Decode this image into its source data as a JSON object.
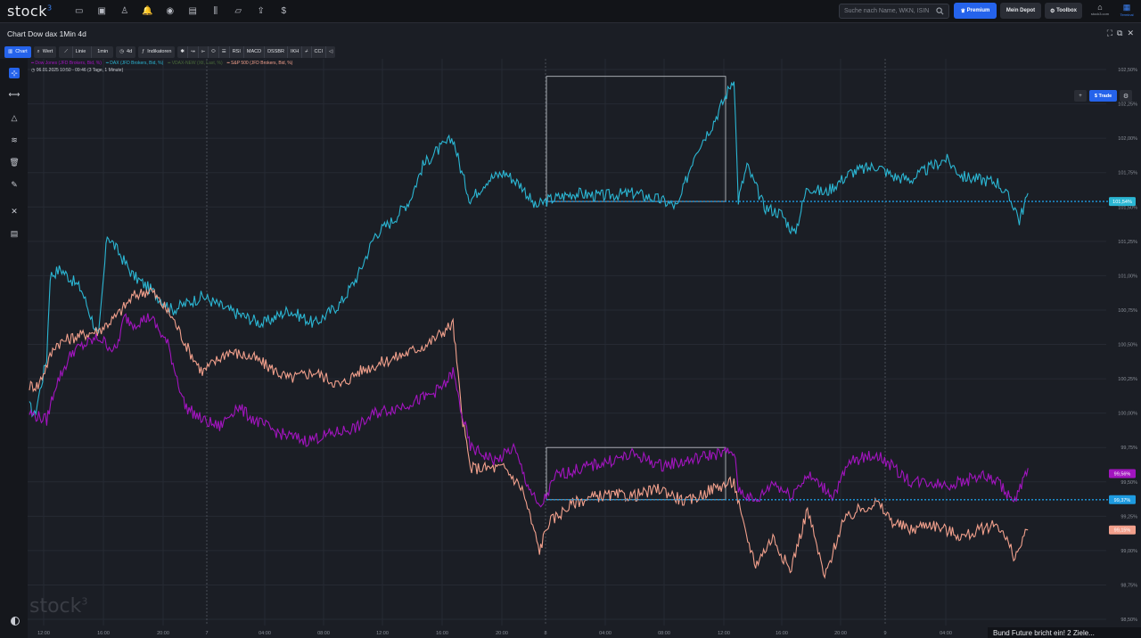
{
  "app": {
    "logo": "stock",
    "logo_sup": "3"
  },
  "nav_icons": [
    "dashboard-icon",
    "monitor-icon",
    "user-icon",
    "bell-icon",
    "eye-icon",
    "news-icon",
    "candles-icon",
    "folder-icon",
    "upload-icon",
    "dollar-icon"
  ],
  "search": {
    "placeholder": "Suche nach Name, WKN, ISIN"
  },
  "header": {
    "premium": "Premium",
    "depot": "Mein Depot",
    "toolbox": "Toolbox",
    "app1": "stock3.com",
    "app2": "Terminal"
  },
  "window": {
    "title": "Chart Dow dax 1Min 4d"
  },
  "toolbar": {
    "chart": "Chart",
    "wert": "Wert",
    "linie": "Linie",
    "interval": "1min",
    "range": "4d",
    "indikatoren": "Indikatoren",
    "indicators": [
      "RSI",
      "MACD",
      "DSSBR",
      "IKH"
    ],
    "cci": "CCI",
    "trade": "Trade"
  },
  "legend": {
    "series": [
      {
        "name": "Dow Jones (JFD Brokers, Bid, %)",
        "color": "#a214bf"
      },
      {
        "name": "DAX (JFD Brokers, Bid, %)",
        "color": "#2bb6d3"
      },
      {
        "name": "VDAX-NEW (Xtl, Last, %)",
        "color": "#4a6b3a"
      },
      {
        "name": "S&P 500 (JFD Brokers, Bid, %)",
        "color": "#f2a08c"
      }
    ],
    "range_text": "06.01.2025 10:50 - 09:46  (3 Tage, 1 Minute)"
  },
  "chart_data": {
    "type": "line",
    "y_ticks": [
      "102,50%",
      "102,25%",
      "102,00%",
      "101,75%",
      "101,50%",
      "101,25%",
      "101,00%",
      "100,75%",
      "100,50%",
      "100,25%",
      "100,00%",
      "99,75%",
      "99,50%",
      "99,25%",
      "99,00%",
      "98,75%",
      "98,50%"
    ],
    "y_tick_values": [
      102.5,
      102.25,
      102.0,
      101.75,
      101.5,
      101.25,
      101.0,
      100.75,
      100.5,
      100.25,
      100.0,
      99.75,
      99.5,
      99.25,
      99.0,
      98.75,
      98.5
    ],
    "x_ticks": [
      "12:00",
      "16:00",
      "20:00",
      "7",
      "04:00",
      "08:00",
      "12:00",
      "16:00",
      "20:00",
      "8",
      "04:00",
      "08:00",
      "12:00",
      "16:00",
      "20:00",
      "9",
      "04:00"
    ],
    "price_labels": [
      {
        "text": "101,54%",
        "color": "#2bb6d3",
        "value": 101.54
      },
      {
        "text": "99,56%",
        "color": "#a214bf",
        "value": 99.56
      },
      {
        "text": "99,37%",
        "color": "#1e9be0",
        "value": 99.37
      },
      {
        "text": "99,15%",
        "color": "#f2a08c",
        "value": 99.15
      }
    ],
    "series": [
      {
        "name": "DAX",
        "color": "#2bb6d3",
        "points": [
          [
            0,
            100.05
          ],
          [
            6,
            99.98
          ],
          [
            20,
            100.4
          ],
          [
            24,
            101.0
          ],
          [
            36,
            101.05
          ],
          [
            60,
            100.9
          ],
          [
            80,
            100.55
          ],
          [
            90,
            101.3
          ],
          [
            100,
            101.2
          ],
          [
            120,
            101.0
          ],
          [
            140,
            100.9
          ],
          [
            165,
            100.75
          ],
          [
            200,
            100.85
          ],
          [
            230,
            100.75
          ],
          [
            270,
            100.65
          ],
          [
            300,
            100.75
          ],
          [
            330,
            100.65
          ],
          [
            360,
            100.8
          ],
          [
            380,
            101.0
          ],
          [
            400,
            101.3
          ],
          [
            420,
            101.4
          ],
          [
            440,
            101.55
          ],
          [
            455,
            101.8
          ],
          [
            470,
            101.9
          ],
          [
            490,
            102.0
          ],
          [
            500,
            101.75
          ],
          [
            510,
            101.55
          ],
          [
            530,
            101.7
          ],
          [
            550,
            101.75
          ],
          [
            570,
            101.65
          ],
          [
            585,
            101.5
          ],
          [
            600,
            101.55
          ],
          [
            630,
            101.6
          ],
          [
            660,
            101.58
          ],
          [
            700,
            101.6
          ],
          [
            730,
            101.55
          ],
          [
            750,
            101.5
          ],
          [
            770,
            101.9
          ],
          [
            790,
            102.1
          ],
          [
            805,
            102.3
          ],
          [
            815,
            102.45
          ],
          [
            820,
            101.55
          ],
          [
            830,
            101.8
          ],
          [
            850,
            101.5
          ],
          [
            870,
            101.45
          ],
          [
            885,
            101.3
          ],
          [
            900,
            101.65
          ],
          [
            920,
            101.6
          ],
          [
            950,
            101.75
          ],
          [
            980,
            101.8
          ],
          [
            1000,
            101.72
          ],
          [
            1020,
            101.7
          ],
          [
            1040,
            101.78
          ],
          [
            1060,
            101.85
          ],
          [
            1080,
            101.72
          ],
          [
            1100,
            101.7
          ],
          [
            1120,
            101.68
          ],
          [
            1140,
            101.5
          ],
          [
            1145,
            101.4
          ],
          [
            1155,
            101.6
          ]
        ]
      },
      {
        "name": "S&P 500",
        "color": "#f2a08c",
        "points": [
          [
            0,
            100.2
          ],
          [
            10,
            100.2
          ],
          [
            30,
            100.5
          ],
          [
            50,
            100.55
          ],
          [
            80,
            100.6
          ],
          [
            100,
            100.7
          ],
          [
            120,
            100.85
          ],
          [
            140,
            100.9
          ],
          [
            165,
            100.7
          ],
          [
            185,
            100.45
          ],
          [
            200,
            100.3
          ],
          [
            230,
            100.45
          ],
          [
            260,
            100.4
          ],
          [
            300,
            100.25
          ],
          [
            330,
            100.3
          ],
          [
            360,
            100.2
          ],
          [
            380,
            100.3
          ],
          [
            400,
            100.35
          ],
          [
            430,
            100.42
          ],
          [
            460,
            100.5
          ],
          [
            480,
            100.6
          ],
          [
            490,
            100.65
          ],
          [
            500,
            100.0
          ],
          [
            510,
            99.6
          ],
          [
            530,
            99.6
          ],
          [
            550,
            99.6
          ],
          [
            570,
            99.45
          ],
          [
            590,
            99.0
          ],
          [
            600,
            99.2
          ],
          [
            630,
            99.35
          ],
          [
            660,
            99.4
          ],
          [
            700,
            99.4
          ],
          [
            730,
            99.45
          ],
          [
            760,
            99.35
          ],
          [
            790,
            99.45
          ],
          [
            815,
            99.5
          ],
          [
            825,
            99.2
          ],
          [
            840,
            98.9
          ],
          [
            860,
            99.1
          ],
          [
            880,
            98.85
          ],
          [
            900,
            99.3
          ],
          [
            920,
            98.8
          ],
          [
            940,
            99.2
          ],
          [
            960,
            99.3
          ],
          [
            980,
            99.35
          ],
          [
            1000,
            99.2
          ],
          [
            1020,
            99.15
          ],
          [
            1040,
            99.2
          ],
          [
            1060,
            99.15
          ],
          [
            1080,
            99.1
          ],
          [
            1100,
            99.15
          ],
          [
            1120,
            99.2
          ],
          [
            1140,
            98.95
          ],
          [
            1155,
            99.15
          ]
        ]
      },
      {
        "name": "Dow Jones",
        "color": "#a214bf",
        "points": [
          [
            0,
            100.0
          ],
          [
            20,
            99.95
          ],
          [
            30,
            100.2
          ],
          [
            50,
            100.45
          ],
          [
            80,
            100.55
          ],
          [
            100,
            100.45
          ],
          [
            110,
            100.7
          ],
          [
            120,
            100.65
          ],
          [
            140,
            100.7
          ],
          [
            160,
            100.5
          ],
          [
            180,
            100.05
          ],
          [
            200,
            99.95
          ],
          [
            220,
            99.9
          ],
          [
            240,
            100.05
          ],
          [
            260,
            99.95
          ],
          [
            290,
            99.85
          ],
          [
            320,
            99.8
          ],
          [
            350,
            99.85
          ],
          [
            380,
            99.9
          ],
          [
            400,
            100.0
          ],
          [
            430,
            100.05
          ],
          [
            460,
            100.12
          ],
          [
            480,
            100.2
          ],
          [
            490,
            100.3
          ],
          [
            500,
            100.0
          ],
          [
            510,
            99.75
          ],
          [
            540,
            99.65
          ],
          [
            560,
            99.75
          ],
          [
            575,
            99.5
          ],
          [
            590,
            99.3
          ],
          [
            610,
            99.55
          ],
          [
            640,
            99.6
          ],
          [
            670,
            99.65
          ],
          [
            700,
            99.7
          ],
          [
            730,
            99.62
          ],
          [
            760,
            99.65
          ],
          [
            790,
            99.7
          ],
          [
            815,
            99.72
          ],
          [
            820,
            99.45
          ],
          [
            840,
            99.35
          ],
          [
            860,
            99.5
          ],
          [
            880,
            99.4
          ],
          [
            900,
            99.55
          ],
          [
            930,
            99.4
          ],
          [
            950,
            99.65
          ],
          [
            980,
            99.7
          ],
          [
            1000,
            99.6
          ],
          [
            1020,
            99.5
          ],
          [
            1040,
            99.5
          ],
          [
            1060,
            99.48
          ],
          [
            1080,
            99.5
          ],
          [
            1100,
            99.55
          ],
          [
            1120,
            99.5
          ],
          [
            1140,
            99.35
          ],
          [
            1155,
            99.6
          ]
        ]
      }
    ]
  },
  "ticker": {
    "text": "Bund Future bricht ein! 2 Ziele..."
  },
  "watermark": {
    "logo": "stock",
    "sup": "3"
  }
}
